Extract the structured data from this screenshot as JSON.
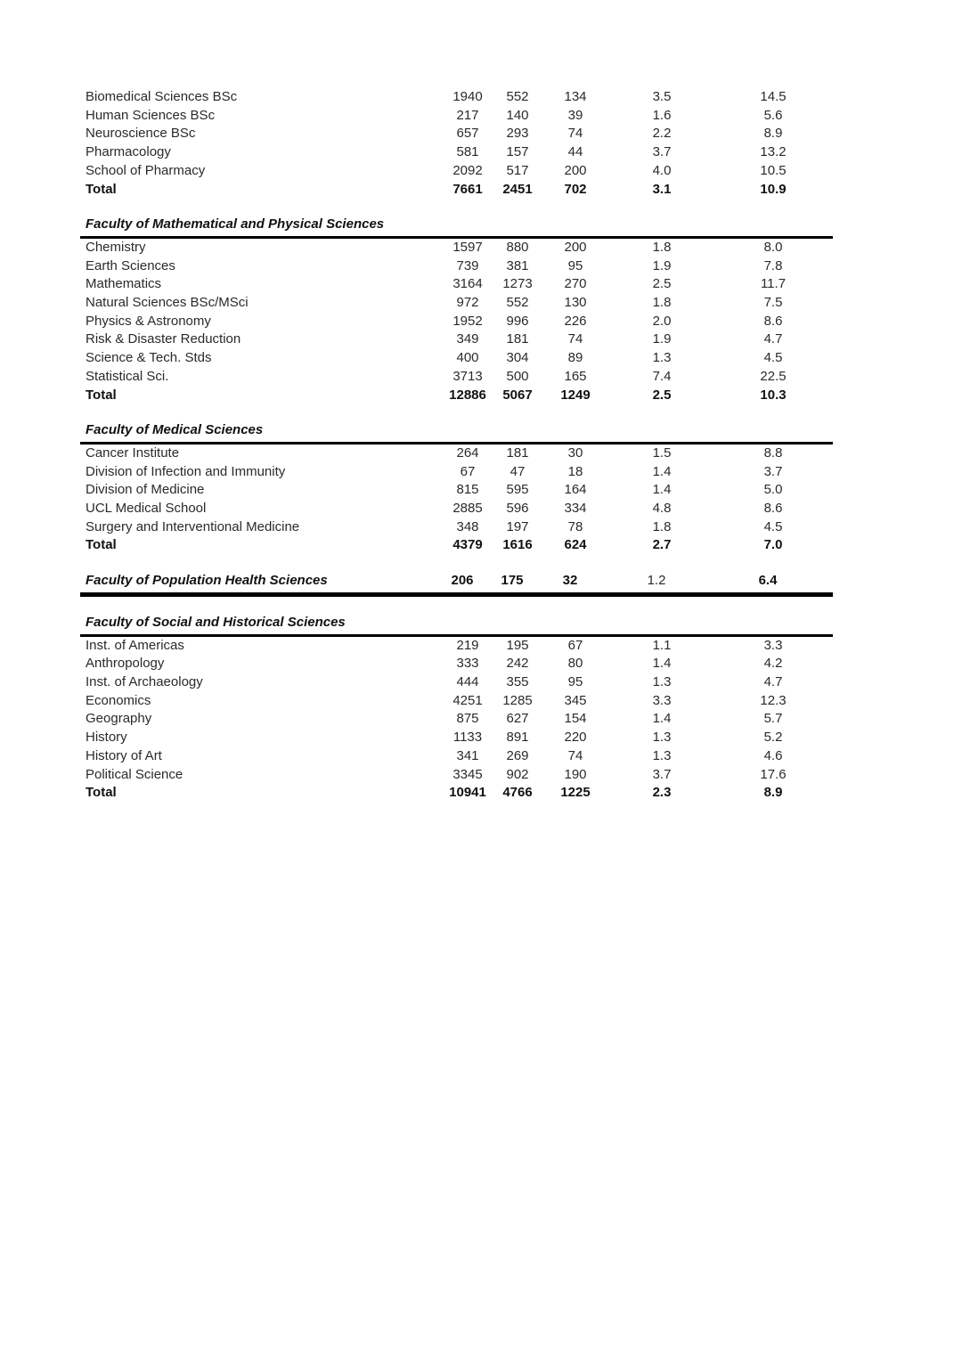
{
  "document": {
    "total_label": "Total",
    "sections": [
      {
        "title": "",
        "rows": [
          {
            "label": "Biomedical Sciences BSc",
            "values": [
              "1940",
              "552",
              "134",
              "3.5",
              "14.5"
            ]
          },
          {
            "label": "Human Sciences BSc",
            "values": [
              "217",
              "140",
              "39",
              "1.6",
              "5.6"
            ]
          },
          {
            "label": "Neuroscience BSc",
            "values": [
              "657",
              "293",
              "74",
              "2.2",
              "8.9"
            ]
          },
          {
            "label": "Pharmacology",
            "values": [
              "581",
              "157",
              "44",
              "3.7",
              "13.2"
            ]
          },
          {
            "label": "School of Pharmacy",
            "values": [
              "2092",
              "517",
              "200",
              "4.0",
              "10.5"
            ]
          }
        ],
        "total": {
          "label": "Total",
          "values": [
            "7661",
            "2451",
            "702",
            "3.1",
            "10.9"
          ]
        }
      },
      {
        "title": "Faculty of Mathematical and Physical Sciences",
        "rows": [
          {
            "label": "Chemistry",
            "values": [
              "1597",
              "880",
              "200",
              "1.8",
              "8.0"
            ]
          },
          {
            "label": "Earth Sciences",
            "values": [
              "739",
              "381",
              "95",
              "1.9",
              "7.8"
            ]
          },
          {
            "label": "Mathematics",
            "values": [
              "3164",
              "1273",
              "270",
              "2.5",
              "11.7"
            ]
          },
          {
            "label": "Natural Sciences BSc/MSci",
            "values": [
              "972",
              "552",
              "130",
              "1.8",
              "7.5"
            ]
          },
          {
            "label": "Physics & Astronomy",
            "values": [
              "1952",
              "996",
              "226",
              "2.0",
              "8.6"
            ]
          },
          {
            "label": "Risk & Disaster Reduction",
            "values": [
              "349",
              "181",
              "74",
              "1.9",
              "4.7"
            ]
          },
          {
            "label": "Science & Tech. Stds",
            "values": [
              "400",
              "304",
              "89",
              "1.3",
              "4.5"
            ]
          },
          {
            "label": "Statistical Sci.",
            "values": [
              "3713",
              "500",
              "165",
              "7.4",
              "22.5"
            ]
          }
        ],
        "total": {
          "label": "Total",
          "values": [
            "12886",
            "5067",
            "1249",
            "2.5",
            "10.3"
          ]
        }
      },
      {
        "title": "Faculty of Medical Sciences",
        "rows": [
          {
            "label": "Cancer Institute",
            "values": [
              "264",
              "181",
              "30",
              "1.5",
              "8.8"
            ]
          },
          {
            "label": "Division of Infection and Immunity",
            "values": [
              "67",
              "47",
              "18",
              "1.4",
              "3.7"
            ]
          },
          {
            "label": "Division of Medicine",
            "values": [
              "815",
              "595",
              "164",
              "1.4",
              "5.0"
            ]
          },
          {
            "label": "UCL Medical School",
            "values": [
              "2885",
              "596",
              "334",
              "4.8",
              "8.6"
            ]
          },
          {
            "label": "Surgery and Interventional Medicine",
            "values": [
              "348",
              "197",
              "78",
              "1.8",
              "4.5"
            ]
          }
        ],
        "total": {
          "label": "Total",
          "values": [
            "4379",
            "1616",
            "624",
            "2.7",
            "7.0"
          ]
        }
      },
      {
        "title": "Faculty of Population Health Sciences",
        "inline_values": [
          "206",
          "175",
          "32",
          "1.2",
          "6.4"
        ],
        "inline_bold": [
          true,
          true,
          true,
          false,
          true
        ]
      },
      {
        "title": "Faculty of Social and Historical Sciences",
        "rows": [
          {
            "label": "Inst. of Americas",
            "values": [
              "219",
              "195",
              "67",
              "1.1",
              "3.3"
            ]
          },
          {
            "label": "Anthropology",
            "values": [
              "333",
              "242",
              "80",
              "1.4",
              "4.2"
            ]
          },
          {
            "label": "Inst. of Archaeology",
            "values": [
              "444",
              "355",
              "95",
              "1.3",
              "4.7"
            ]
          },
          {
            "label": "Economics",
            "values": [
              "4251",
              "1285",
              "345",
              "3.3",
              "12.3"
            ]
          },
          {
            "label": "Geography",
            "values": [
              "875",
              "627",
              "154",
              "1.4",
              "5.7"
            ]
          },
          {
            "label": "History",
            "values": [
              "1133",
              "891",
              "220",
              "1.3",
              "5.2"
            ]
          },
          {
            "label": "History of Art",
            "values": [
              "341",
              "269",
              "74",
              "1.3",
              "4.6"
            ]
          },
          {
            "label": "Political Science",
            "values": [
              "3345",
              "902",
              "190",
              "3.7",
              "17.6"
            ]
          }
        ],
        "total": {
          "label": "Total",
          "values": [
            "10941",
            "4766",
            "1225",
            "2.3",
            "8.9"
          ]
        }
      }
    ]
  }
}
